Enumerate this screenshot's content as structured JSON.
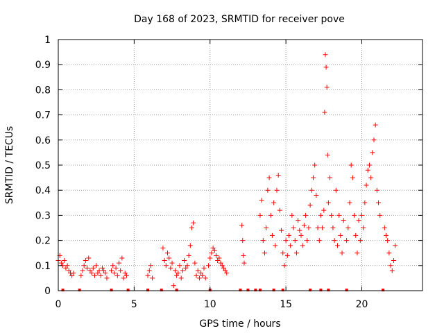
{
  "chart_data": {
    "type": "scatter",
    "title": "Day 168 of 2023, SRMTID for receiver pove",
    "xlabel": "GPS time / hours",
    "ylabel": "SRMTID / TECUs",
    "xlim": [
      0,
      24
    ],
    "ylim": [
      0,
      1
    ],
    "xticks": [
      0,
      5,
      10,
      15,
      20
    ],
    "xtick_labels": [
      "0",
      "5",
      "10",
      "15",
      "20"
    ],
    "yticks": [
      0,
      0.1,
      0.2,
      0.3,
      0.4,
      0.5,
      0.6,
      0.7,
      0.8,
      0.9,
      1
    ],
    "ytick_labels": [
      "0",
      "0.1",
      "0.2",
      "0.3",
      "0.4",
      "0.5",
      "0.6",
      "0.7",
      "0.8",
      "0.9",
      "1"
    ],
    "grid": true,
    "marker": "+",
    "series_color": "#ff0000",
    "series": [
      {
        "name": "SRMTID",
        "points": [
          [
            0.0,
            0.12
          ],
          [
            0.1,
            0.14
          ],
          [
            0.2,
            0.11
          ],
          [
            0.3,
            0.1
          ],
          [
            0.4,
            0.12
          ],
          [
            0.5,
            0.09
          ],
          [
            0.6,
            0.1
          ],
          [
            0.7,
            0.08
          ],
          [
            0.8,
            0.07
          ],
          [
            0.9,
            0.06
          ],
          [
            1.0,
            0.07
          ],
          [
            1.5,
            0.06
          ],
          [
            1.6,
            0.08
          ],
          [
            1.7,
            0.1
          ],
          [
            1.8,
            0.12
          ],
          [
            1.9,
            0.09
          ],
          [
            2.0,
            0.13
          ],
          [
            2.1,
            0.08
          ],
          [
            2.2,
            0.07
          ],
          [
            2.3,
            0.09
          ],
          [
            2.4,
            0.06
          ],
          [
            2.5,
            0.1
          ],
          [
            2.6,
            0.07
          ],
          [
            2.7,
            0.08
          ],
          [
            2.8,
            0.06
          ],
          [
            2.9,
            0.09
          ],
          [
            3.0,
            0.08
          ],
          [
            3.1,
            0.07
          ],
          [
            3.2,
            0.05
          ],
          [
            3.5,
            0.08
          ],
          [
            3.6,
            0.1
          ],
          [
            3.7,
            0.07
          ],
          [
            3.8,
            0.09
          ],
          [
            3.9,
            0.06
          ],
          [
            4.0,
            0.11
          ],
          [
            4.1,
            0.08
          ],
          [
            4.2,
            0.13
          ],
          [
            4.3,
            0.05
          ],
          [
            4.4,
            0.07
          ],
          [
            4.5,
            0.06
          ],
          [
            5.9,
            0.06
          ],
          [
            6.0,
            0.08
          ],
          [
            6.1,
            0.1
          ],
          [
            6.2,
            0.05
          ],
          [
            6.9,
            0.17
          ],
          [
            7.0,
            0.12
          ],
          [
            7.1,
            0.1
          ],
          [
            7.2,
            0.15
          ],
          [
            7.3,
            0.13
          ],
          [
            7.4,
            0.09
          ],
          [
            7.5,
            0.11
          ],
          [
            7.6,
            0.02
          ],
          [
            7.7,
            0.08
          ],
          [
            7.8,
            0.06
          ],
          [
            7.9,
            0.07
          ],
          [
            8.0,
            0.1
          ],
          [
            8.1,
            0.05
          ],
          [
            8.2,
            0.08
          ],
          [
            8.3,
            0.12
          ],
          [
            8.4,
            0.09
          ],
          [
            8.5,
            0.1
          ],
          [
            8.6,
            0.14
          ],
          [
            8.7,
            0.18
          ],
          [
            8.8,
            0.25
          ],
          [
            8.9,
            0.27
          ],
          [
            9.0,
            0.11
          ],
          [
            9.1,
            0.06
          ],
          [
            9.2,
            0.08
          ],
          [
            9.3,
            0.05
          ],
          [
            9.4,
            0.07
          ],
          [
            9.5,
            0.06
          ],
          [
            9.6,
            0.09
          ],
          [
            9.7,
            0.05
          ],
          [
            9.9,
            0.1
          ],
          [
            10.0,
            0.13
          ],
          [
            10.1,
            0.15
          ],
          [
            10.2,
            0.17
          ],
          [
            10.3,
            0.16
          ],
          [
            10.4,
            0.14
          ],
          [
            10.5,
            0.12
          ],
          [
            10.6,
            0.13
          ],
          [
            10.7,
            0.11
          ],
          [
            10.8,
            0.1
          ],
          [
            10.9,
            0.09
          ],
          [
            11.0,
            0.08
          ],
          [
            11.1,
            0.07
          ],
          [
            12.1,
            0.26
          ],
          [
            12.15,
            0.2
          ],
          [
            12.2,
            0.14
          ],
          [
            12.25,
            0.11
          ],
          [
            13.3,
            0.3
          ],
          [
            13.4,
            0.36
          ],
          [
            13.5,
            0.2
          ],
          [
            13.6,
            0.15
          ],
          [
            13.7,
            0.25
          ],
          [
            13.8,
            0.4
          ],
          [
            13.9,
            0.45
          ],
          [
            14.0,
            0.3
          ],
          [
            14.1,
            0.22
          ],
          [
            14.2,
            0.35
          ],
          [
            14.3,
            0.18
          ],
          [
            14.4,
            0.4
          ],
          [
            14.5,
            0.46
          ],
          [
            14.6,
            0.32
          ],
          [
            14.7,
            0.24
          ],
          [
            14.8,
            0.15
          ],
          [
            14.9,
            0.1
          ],
          [
            15.0,
            0.2
          ],
          [
            15.1,
            0.14
          ],
          [
            15.2,
            0.22
          ],
          [
            15.3,
            0.18
          ],
          [
            15.4,
            0.3
          ],
          [
            15.5,
            0.25
          ],
          [
            15.6,
            0.2
          ],
          [
            15.7,
            0.15
          ],
          [
            15.8,
            0.28
          ],
          [
            15.9,
            0.24
          ],
          [
            16.0,
            0.22
          ],
          [
            16.1,
            0.18
          ],
          [
            16.2,
            0.26
          ],
          [
            16.3,
            0.3
          ],
          [
            16.4,
            0.2
          ],
          [
            16.5,
            0.25
          ],
          [
            16.6,
            0.34
          ],
          [
            16.7,
            0.4
          ],
          [
            16.8,
            0.45
          ],
          [
            16.9,
            0.5
          ],
          [
            17.0,
            0.38
          ],
          [
            17.1,
            0.25
          ],
          [
            17.2,
            0.2
          ],
          [
            17.3,
            0.3
          ],
          [
            17.4,
            0.25
          ],
          [
            17.5,
            0.32
          ],
          [
            17.55,
            0.71
          ],
          [
            17.6,
            0.94
          ],
          [
            17.65,
            0.89
          ],
          [
            17.7,
            0.81
          ],
          [
            17.75,
            0.54
          ],
          [
            17.8,
            0.35
          ],
          [
            17.9,
            0.45
          ],
          [
            18.0,
            0.3
          ],
          [
            18.1,
            0.25
          ],
          [
            18.2,
            0.2
          ],
          [
            18.3,
            0.4
          ],
          [
            18.4,
            0.18
          ],
          [
            18.5,
            0.3
          ],
          [
            18.6,
            0.22
          ],
          [
            18.7,
            0.15
          ],
          [
            18.8,
            0.28
          ],
          [
            19.0,
            0.2
          ],
          [
            19.1,
            0.25
          ],
          [
            19.2,
            0.35
          ],
          [
            19.3,
            0.5
          ],
          [
            19.4,
            0.45
          ],
          [
            19.5,
            0.3
          ],
          [
            19.6,
            0.22
          ],
          [
            19.7,
            0.15
          ],
          [
            19.8,
            0.28
          ],
          [
            19.9,
            0.2
          ],
          [
            20.0,
            0.3
          ],
          [
            20.1,
            0.25
          ],
          [
            20.2,
            0.35
          ],
          [
            20.3,
            0.42
          ],
          [
            20.4,
            0.48
          ],
          [
            20.5,
            0.5
          ],
          [
            20.6,
            0.45
          ],
          [
            20.7,
            0.55
          ],
          [
            20.8,
            0.6
          ],
          [
            20.9,
            0.66
          ],
          [
            21.0,
            0.4
          ],
          [
            21.1,
            0.35
          ],
          [
            21.2,
            0.3
          ],
          [
            21.5,
            0.25
          ],
          [
            21.6,
            0.22
          ],
          [
            21.7,
            0.2
          ],
          [
            21.8,
            0.15
          ],
          [
            21.9,
            0.1
          ],
          [
            22.0,
            0.08
          ],
          [
            22.1,
            0.12
          ],
          [
            22.2,
            0.18
          ]
        ]
      }
    ],
    "zero_markers_x": [
      0.3,
      1.4,
      3.5,
      4.6,
      5.9,
      6.8,
      7.8,
      10.0,
      12.0,
      12.5,
      13.0,
      13.3,
      14.2,
      14.8,
      16.6,
      17.3,
      17.8,
      19.0,
      21.4
    ]
  }
}
